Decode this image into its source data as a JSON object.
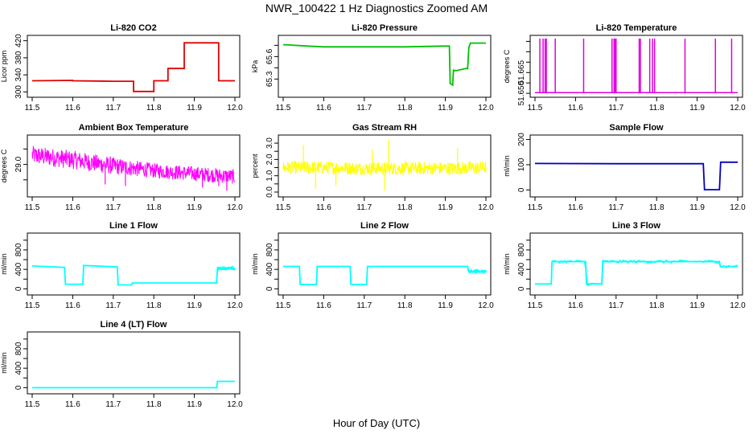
{
  "figure": {
    "title": "NWR_100422  1 Hz Diagnostics Zoomed AM",
    "xlabel": "Hour of Day (UTC)"
  },
  "chart_data": [
    {
      "id": "co2",
      "type": "line",
      "title": "Li-820 CO2",
      "ylabel": "Licor ppm",
      "color": "#e00000",
      "xlim": [
        11.5,
        12.0
      ],
      "ylim": [
        295,
        425
      ],
      "xticks": [
        11.5,
        11.6,
        11.7,
        11.8,
        11.9,
        12.0
      ],
      "xtick_labels": [
        "11.5",
        "11.6",
        "11.7",
        "11.8",
        "11.9",
        "12.0"
      ],
      "yticks": [
        300,
        340,
        380,
        420
      ],
      "ytick_labels": [
        "300",
        "340",
        "380",
        "420"
      ],
      "x": [
        11.5,
        11.6,
        11.6,
        11.7,
        11.75,
        11.75,
        11.8,
        11.8,
        11.835,
        11.835,
        11.875,
        11.875,
        11.96,
        11.96,
        12.0
      ],
      "y": [
        326,
        327,
        326,
        325,
        325,
        301,
        301,
        326,
        326,
        355,
        355,
        415,
        415,
        326,
        326
      ]
    },
    {
      "id": "pressure",
      "type": "line",
      "title": "Li-820 Pressure",
      "ylabel": "kPa",
      "color": "#00c000",
      "xlim": [
        11.5,
        12.0
      ],
      "ylim": [
        65.1,
        65.84
      ],
      "xticks": [
        11.5,
        11.6,
        11.7,
        11.8,
        11.9,
        12.0
      ],
      "xtick_labels": [
        "11.5",
        "11.6",
        "11.7",
        "11.8",
        "11.9",
        "12.0"
      ],
      "yticks": [
        65.3,
        65.45,
        65.6,
        65.75
      ],
      "ytick_labels": [
        "65.3",
        "",
        "65.6",
        ""
      ],
      "x": [
        11.5,
        11.56,
        11.6,
        11.7,
        11.8,
        11.9,
        11.91,
        11.912,
        11.918,
        11.92,
        11.925,
        11.95,
        11.955,
        11.958,
        11.962,
        12.0
      ],
      "y": [
        65.76,
        65.74,
        65.73,
        65.73,
        65.73,
        65.74,
        65.74,
        65.24,
        65.22,
        65.42,
        65.41,
        65.44,
        65.44,
        65.72,
        65.78,
        65.78
      ]
    },
    {
      "id": "licor_temp",
      "type": "line",
      "title": "Li-820 Temperature",
      "ylabel": "degrees C",
      "color": "#e000e0",
      "xlim": [
        11.5,
        12.0
      ],
      "ylim": [
        51.6495,
        51.6895
      ],
      "xticks": [
        11.5,
        11.6,
        11.7,
        11.8,
        11.9,
        12.0
      ],
      "xtick_labels": [
        "11.5",
        "11.6",
        "11.7",
        "11.8",
        "11.9",
        "12.0"
      ],
      "yticks": [
        51.65,
        51.6575,
        51.665,
        51.6725,
        51.68,
        51.6875
      ],
      "ytick_labels": [
        "51.650",
        "",
        "51.665",
        "",
        "",
        ""
      ],
      "baseline": 51.6505,
      "spike_top": 51.6895,
      "spikes": [
        11.512,
        11.52,
        11.525,
        11.528,
        11.55,
        11.62,
        11.69,
        11.695,
        11.698,
        11.7,
        11.757,
        11.76,
        11.783,
        11.79,
        11.795,
        11.87,
        11.945,
        11.985
      ]
    },
    {
      "id": "ambient_temp",
      "type": "noise",
      "title": "Ambient Box Temperature",
      "ylabel": "degrees C",
      "color": "#ff00ff",
      "xlim": [
        11.5,
        12.0
      ],
      "ylim": [
        28.05,
        29.85
      ],
      "xticks": [
        11.5,
        11.6,
        11.7,
        11.8,
        11.9,
        12.0
      ],
      "xtick_labels": [
        "11.5",
        "11.6",
        "11.7",
        "11.8",
        "11.9",
        "12.0"
      ],
      "yticks": [
        28.5,
        29.0,
        29.5
      ],
      "ytick_labels": [
        "",
        "29.0",
        ""
      ],
      "x": [
        11.5,
        11.6,
        11.7,
        11.8,
        11.9,
        12.0
      ],
      "y": [
        29.3,
        29.15,
        28.95,
        28.8,
        28.7,
        28.6
      ],
      "spread": [
        0.3,
        0.3,
        0.28,
        0.24,
        0.24,
        0.24
      ],
      "dips": [
        [
          11.68,
          28.35
        ],
        [
          11.73,
          28.3
        ],
        [
          11.92,
          28.25
        ],
        [
          11.96,
          28.3
        ],
        [
          11.98,
          28.15
        ]
      ]
    },
    {
      "id": "rh",
      "type": "noise",
      "title": "Gas Stream RH",
      "ylabel": "percent",
      "color": "#ffff00",
      "xlim": [
        11.5,
        12.0
      ],
      "ylim": [
        -0.1,
        3.3
      ],
      "xticks": [
        11.5,
        11.6,
        11.7,
        11.8,
        11.9,
        12.0
      ],
      "xtick_labels": [
        "11.5",
        "11.6",
        "11.7",
        "11.8",
        "11.9",
        "12.0"
      ],
      "yticks": [
        0.0,
        0.5,
        1.0,
        1.5,
        2.0,
        2.5,
        3.0
      ],
      "ytick_labels": [
        "0.0",
        "",
        "1.0",
        "",
        "2.0",
        "",
        "3.0"
      ],
      "x": [
        11.5,
        11.6,
        11.7,
        11.8,
        11.9,
        12.0
      ],
      "y": [
        1.5,
        1.5,
        1.45,
        1.45,
        1.45,
        1.5
      ],
      "spread": [
        0.4,
        0.4,
        0.4,
        0.4,
        0.4,
        0.4
      ],
      "spikes_up": [
        [
          11.55,
          2.9
        ],
        [
          11.76,
          3.2
        ],
        [
          11.72,
          2.6
        ],
        [
          11.93,
          2.7
        ]
      ],
      "dips": [
        [
          11.58,
          0.2
        ],
        [
          11.75,
          0.1
        ],
        [
          11.63,
          0.4
        ]
      ]
    },
    {
      "id": "sample_flow",
      "type": "line",
      "title": "Sample Flow",
      "ylabel": "ml/min",
      "color": "#0000c0",
      "xlim": [
        11.5,
        12.0
      ],
      "ylim": [
        -15,
        205
      ],
      "xticks": [
        11.5,
        11.6,
        11.7,
        11.8,
        11.9,
        12.0
      ],
      "xtick_labels": [
        "11.5",
        "11.6",
        "11.7",
        "11.8",
        "11.9",
        "12.0"
      ],
      "yticks": [
        0,
        100,
        200
      ],
      "ytick_labels": [
        "0",
        "100",
        "200"
      ],
      "x": [
        11.5,
        11.7,
        11.9,
        11.915,
        11.918,
        11.955,
        11.958,
        12.0
      ],
      "y": [
        105,
        104,
        104,
        104,
        1,
        1,
        110,
        110
      ]
    },
    {
      "id": "line1",
      "type": "line",
      "title": "Line 1 Flow",
      "ylabel": "ml/min",
      "color": "#00ffff",
      "xlim": [
        11.5,
        12.0
      ],
      "ylim": [
        -60,
        1080
      ],
      "xticks": [
        11.5,
        11.6,
        11.7,
        11.8,
        11.9,
        12.0
      ],
      "xtick_labels": [
        "11.5",
        "11.6",
        "11.7",
        "11.8",
        "11.9",
        "12.0"
      ],
      "yticks": [
        0,
        200,
        400,
        600,
        800,
        1000
      ],
      "ytick_labels": [
        "0",
        "",
        "400",
        "",
        "800",
        ""
      ],
      "x": [
        11.5,
        11.58,
        11.582,
        11.625,
        11.627,
        11.71,
        11.712,
        11.745,
        11.747,
        11.955,
        11.957,
        12.0
      ],
      "y": [
        470,
        440,
        95,
        95,
        480,
        450,
        80,
        80,
        120,
        120,
        420,
        420
      ],
      "thick_from": 11.957
    },
    {
      "id": "line2",
      "type": "line",
      "title": "Line 2 Flow",
      "ylabel": "ml/min",
      "color": "#00ffff",
      "xlim": [
        11.5,
        12.0
      ],
      "ylim": [
        -60,
        1080
      ],
      "xticks": [
        11.5,
        11.6,
        11.7,
        11.8,
        11.9,
        12.0
      ],
      "xtick_labels": [
        "11.5",
        "11.6",
        "11.7",
        "11.8",
        "11.9",
        "12.0"
      ],
      "yticks": [
        0,
        200,
        400,
        600,
        800,
        1000
      ],
      "ytick_labels": [
        "0",
        "",
        "400",
        "",
        "800",
        ""
      ],
      "x": [
        11.5,
        11.54,
        11.542,
        11.582,
        11.584,
        11.665,
        11.667,
        11.706,
        11.708,
        11.955,
        11.957,
        12.0
      ],
      "y": [
        460,
        460,
        90,
        90,
        460,
        460,
        90,
        90,
        460,
        460,
        360,
        360
      ],
      "thick_from": 11.957
    },
    {
      "id": "line3",
      "type": "line",
      "title": "Line 3 Flow",
      "ylabel": "ml/min",
      "color": "#00ffff",
      "xlim": [
        11.5,
        12.0
      ],
      "ylim": [
        -60,
        1080
      ],
      "xticks": [
        11.5,
        11.6,
        11.7,
        11.8,
        11.9,
        12.0
      ],
      "xtick_labels": [
        "11.5",
        "11.6",
        "11.7",
        "11.8",
        "11.9",
        "12.0"
      ],
      "yticks": [
        0,
        200,
        400,
        600,
        800,
        1000
      ],
      "ytick_labels": [
        "0",
        "",
        "400",
        "",
        "800",
        ""
      ],
      "x": [
        11.5,
        11.54,
        11.542,
        11.625,
        11.627,
        11.665,
        11.667,
        11.955,
        11.957,
        12.0
      ],
      "y": [
        100,
        100,
        560,
        560,
        100,
        100,
        560,
        560,
        460,
        460
      ],
      "thick_from": 11.542
    },
    {
      "id": "line4",
      "type": "line",
      "title": "Line 4 (LT) Flow",
      "ylabel": "ml/min",
      "color": "#00ffff",
      "xlim": [
        11.5,
        12.0
      ],
      "ylim": [
        -60,
        1080
      ],
      "xticks": [
        11.5,
        11.6,
        11.7,
        11.8,
        11.9,
        12.0
      ],
      "xtick_labels": [
        "11.5",
        "11.6",
        "11.7",
        "11.8",
        "11.9",
        "12.0"
      ],
      "yticks": [
        0,
        200,
        400,
        600,
        800,
        1000
      ],
      "ytick_labels": [
        "0",
        "",
        "400",
        "",
        "800",
        ""
      ],
      "x": [
        11.5,
        11.955,
        11.957,
        12.0
      ],
      "y": [
        0,
        0,
        130,
        130
      ]
    }
  ]
}
